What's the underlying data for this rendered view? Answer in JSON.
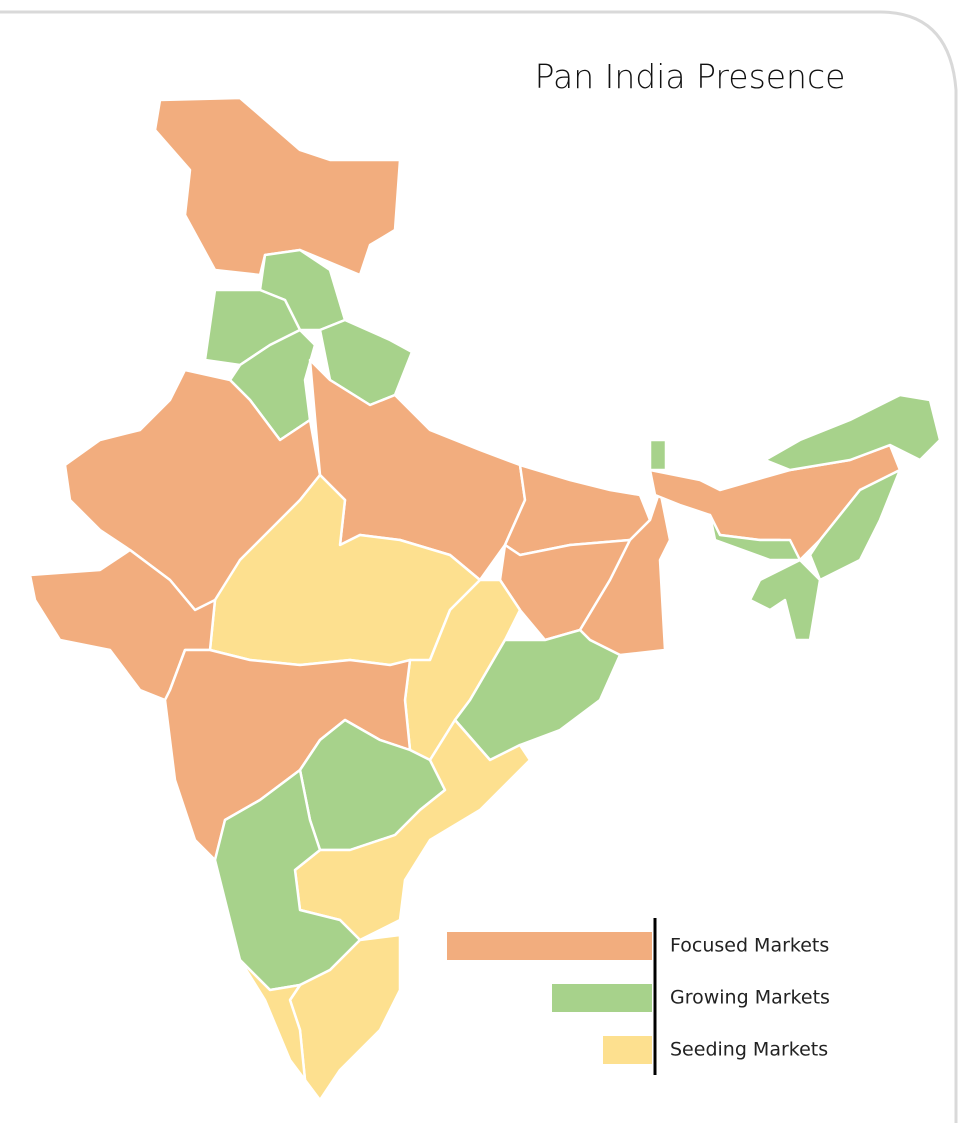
{
  "title": "Pan India Presence",
  "legend": {
    "items": [
      {
        "label": "Focused Markets",
        "color": "#f2ad7e"
      },
      {
        "label": "Growing Markets",
        "color": "#a7d28b"
      },
      {
        "label": "Seeding Markets",
        "color": "#fde08f"
      }
    ]
  }
}
